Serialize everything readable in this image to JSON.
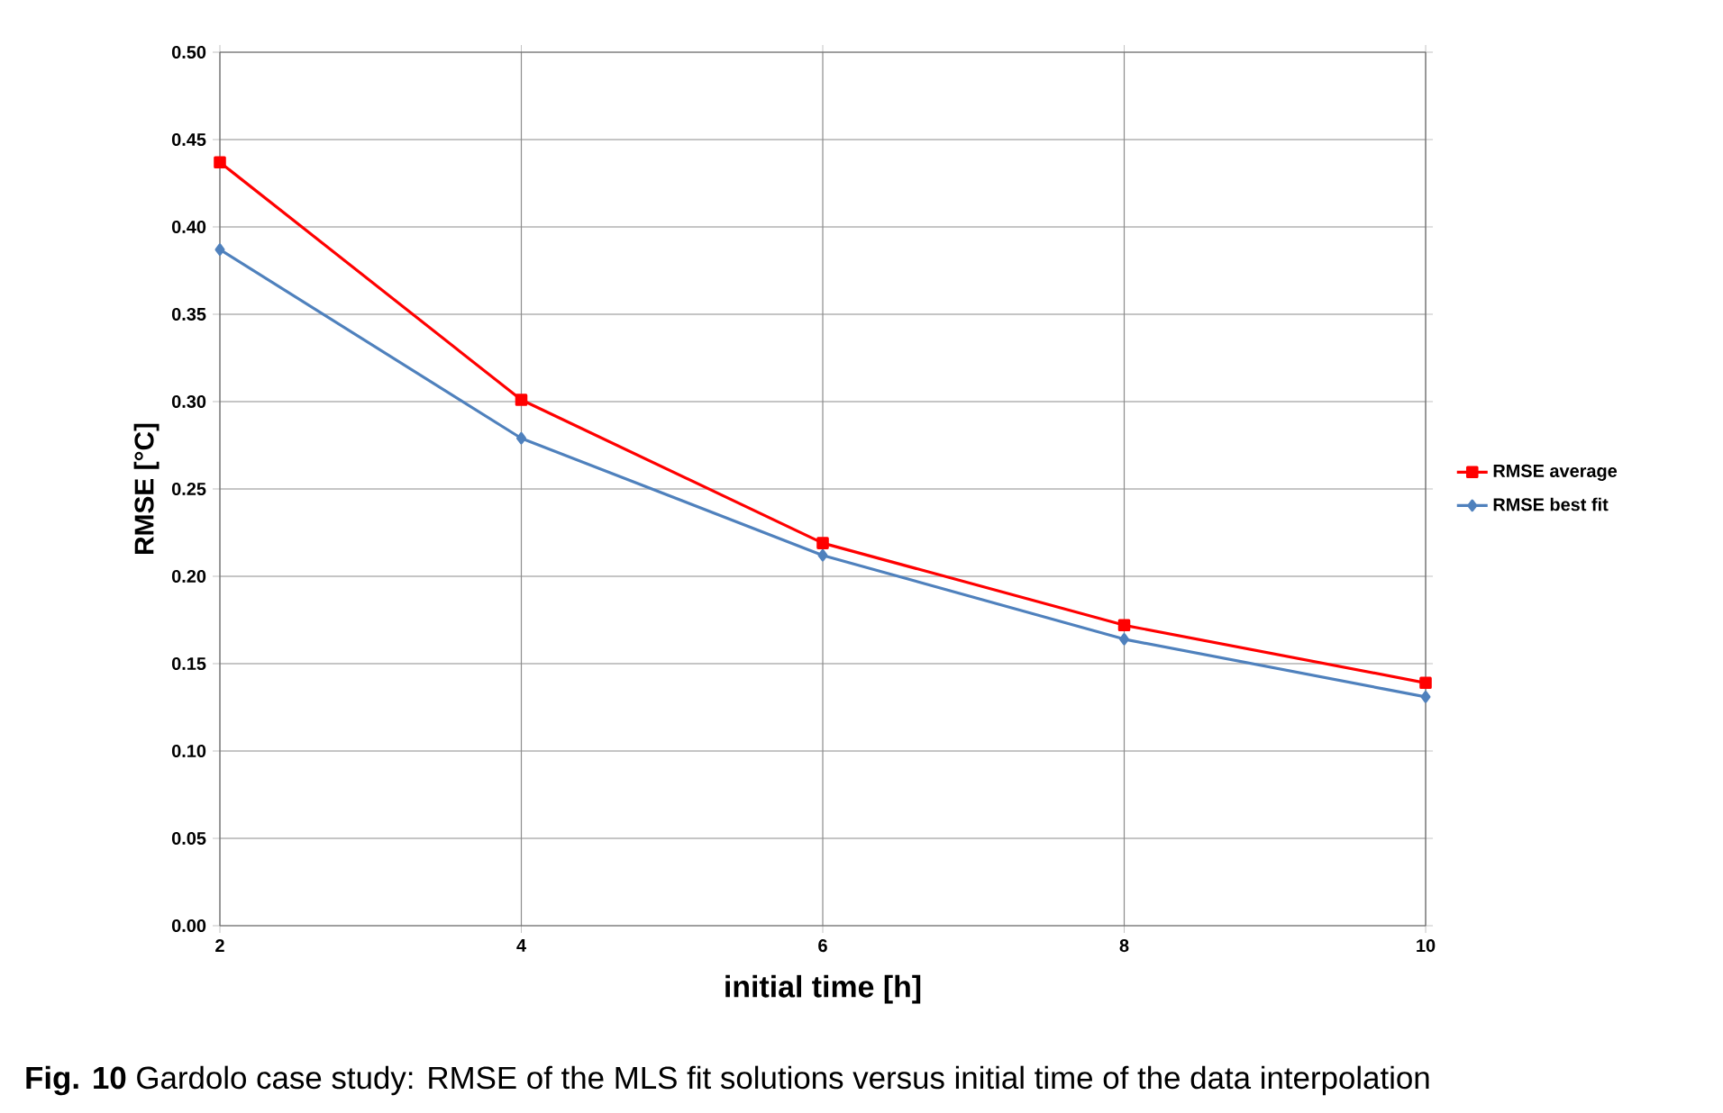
{
  "chart_data": {
    "type": "line",
    "xlabel": "initial time [h]",
    "ylabel": "RMSE [°C]",
    "x": [
      2,
      4,
      6,
      8,
      10
    ],
    "series": [
      {
        "name": "RMSE average",
        "color": "#ff0000",
        "marker": "square",
        "values": [
          0.437,
          0.301,
          0.219,
          0.172,
          0.139
        ]
      },
      {
        "name": "RMSE best fit",
        "color": "#4f81bd",
        "marker": "diamond",
        "values": [
          0.387,
          0.279,
          0.212,
          0.164,
          0.131
        ]
      }
    ],
    "xlim": [
      2,
      10
    ],
    "xticks": [
      2,
      4,
      6,
      8,
      10
    ],
    "ylim": [
      0,
      0.5
    ],
    "yticks": [
      {
        "value": 0,
        "label": "0.00"
      },
      {
        "value": 0.05,
        "label": "0.05"
      },
      {
        "value": 0.1,
        "label": "0.10"
      },
      {
        "value": 0.15,
        "label": "0.15"
      },
      {
        "value": 0.2,
        "label": "0.20"
      },
      {
        "value": 0.25,
        "label": "0.25"
      },
      {
        "value": 0.3,
        "label": "0.30"
      },
      {
        "value": 0.35,
        "label": "0.35"
      },
      {
        "value": 0.4,
        "label": "0.40"
      },
      {
        "value": 0.45,
        "label": "0.45"
      },
      {
        "value": 0.5,
        "label": "0.50"
      }
    ],
    "grid": true,
    "legend": "right",
    "line_style": "solid",
    "annotations": [
      "**Fig. 10**  Gardolo case study: RMSE of the MLS fit solutions versus initial time of the data interpolation"
    ]
  }
}
